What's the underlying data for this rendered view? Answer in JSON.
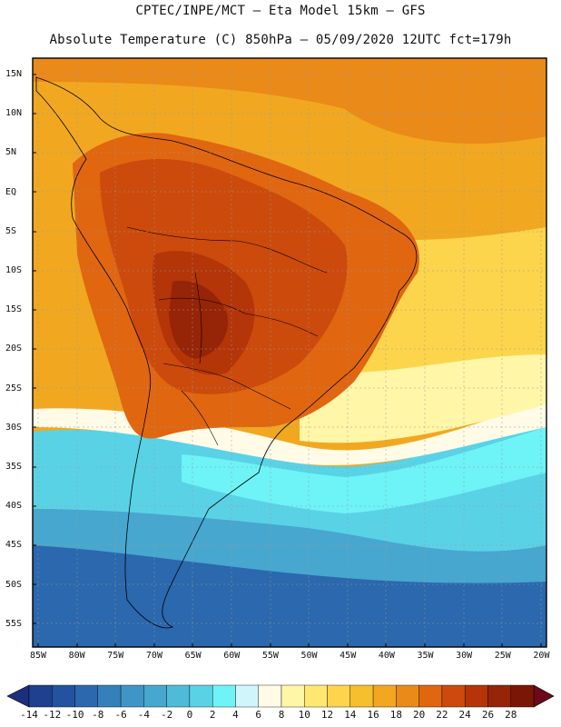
{
  "title": {
    "line1": "CPTEC/INPE/MCT –  Eta Model 15km – GFS",
    "line2": "Absolute Temperature (C) 850hPa – 05/09/2020 12UTC fct=179h"
  },
  "latitudes": [
    "15N",
    "10N",
    "5N",
    "EQ",
    "5S",
    "10S",
    "15S",
    "20S",
    "25S",
    "30S",
    "35S",
    "40S",
    "45S",
    "50S",
    "55S"
  ],
  "longitudes": [
    "85W",
    "80W",
    "75W",
    "70W",
    "65W",
    "60W",
    "55W",
    "50W",
    "45W",
    "40W",
    "35W",
    "30W",
    "25W",
    "20W"
  ],
  "colorbar": {
    "labels": [
      "-14",
      "-12",
      "-10",
      "-8",
      "-6",
      "-4",
      "-2",
      "0",
      "2",
      "4",
      "6",
      "8",
      "10",
      "12",
      "14",
      "16",
      "18",
      "20",
      "22",
      "24",
      "26",
      "28"
    ],
    "colors": [
      "#1f3f8f",
      "#23529f",
      "#2b68ad",
      "#3480bb",
      "#3f96c6",
      "#47a7cf",
      "#4fbbd9",
      "#5ad2e6",
      "#6ef3f6",
      "#d0f6fb",
      "#fffbe6",
      "#fff6a8",
      "#ffe770",
      "#fcd54c",
      "#f5bf2d",
      "#f1a820",
      "#ea8a19",
      "#e06610",
      "#cc4a0b",
      "#b33508",
      "#962407",
      "#7a1606"
    ],
    "under_color": "#1c2f7c",
    "over_color": "#6b0a1c"
  }
}
